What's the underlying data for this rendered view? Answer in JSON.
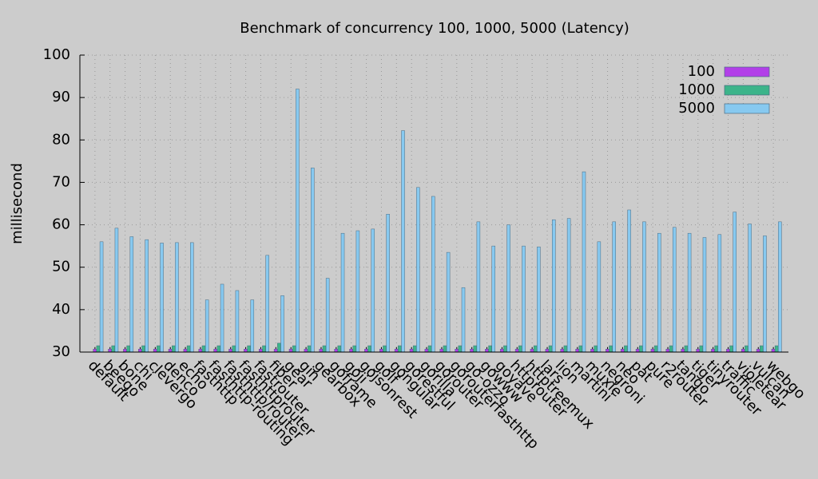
{
  "chart_data": {
    "type": "bar",
    "title": "Benchmark of concurrency 100, 1000, 5000 (Latency)",
    "y_label": "millisecond",
    "categories": [
      "default",
      "beego",
      "bone",
      "chi",
      "clevergo",
      "denco",
      "echo",
      "fasthttp",
      "fasthttp-routing",
      "fasthttp/router",
      "fasthttprouter",
      "fastrouter",
      "fiber",
      "gear",
      "gin",
      "gearbox",
      "goframe",
      "goji",
      "gojsonrest",
      "golf",
      "gongular",
      "gorestful",
      "gorilla",
      "gorouter",
      "gorouterfasthttp",
      "go-ozzo",
      "gowww",
      "goyave",
      "httprouter",
      "httptreemux",
      "lars",
      "lion",
      "martini",
      "muxie",
      "negroni",
      "neo",
      "pat",
      "pure",
      "r2router",
      "tango",
      "tiger",
      "tinyrouter",
      "traffic",
      "violetear",
      "vulcan",
      "webgo"
    ],
    "series": [
      {
        "name": "100",
        "color": "#b23fe8",
        "values": [
          30.7,
          30.7,
          30.7,
          30.7,
          30.7,
          30.7,
          30.7,
          30.7,
          30.7,
          30.7,
          30.7,
          30.7,
          30.7,
          30.7,
          30.7,
          30.7,
          30.7,
          30.7,
          30.7,
          30.7,
          30.7,
          30.7,
          30.7,
          30.7,
          30.7,
          30.7,
          30.7,
          30.7,
          30.7,
          30.7,
          30.7,
          30.7,
          30.7,
          30.7,
          30.7,
          30.7,
          30.7,
          30.7,
          30.7,
          30.7,
          30.7,
          30.7,
          30.7,
          30.7,
          30.7,
          30.7
        ]
      },
      {
        "name": "1000",
        "color": "#3cb48a",
        "values": [
          31.5,
          31.5,
          31.5,
          31.5,
          31.5,
          31.5,
          31.5,
          31.5,
          31.5,
          31.5,
          31.5,
          31.5,
          32.1,
          31.5,
          31.5,
          31.5,
          31.5,
          31.5,
          31.5,
          31.5,
          31.5,
          31.5,
          31.5,
          31.5,
          31.5,
          31.5,
          31.5,
          31.5,
          31.5,
          31.5,
          31.5,
          31.5,
          31.5,
          31.5,
          31.5,
          31.5,
          31.5,
          31.5,
          31.5,
          31.5,
          31.5,
          31.5,
          31.5,
          31.5,
          31.5,
          31.5
        ]
      },
      {
        "name": "5000",
        "color": "#87c9f0",
        "values": [
          56,
          59.2,
          57.2,
          56.5,
          55.7,
          55.8,
          55.8,
          42.3,
          46,
          44.5,
          42.3,
          52.8,
          43.3,
          92,
          73.4,
          47.4,
          58,
          58.6,
          59,
          62.5,
          82.2,
          68.8,
          66.7,
          53.5,
          45.2,
          60.7,
          55,
          60,
          55,
          54.8,
          61.2,
          61.5,
          72.5,
          56,
          60.7,
          63.5,
          60.7,
          58,
          59.4,
          58,
          57,
          57.7,
          63,
          60.2,
          57.4,
          60.7
        ]
      }
    ],
    "ylim": [
      30,
      100
    ],
    "yticks": [
      30,
      40,
      50,
      60,
      70,
      80,
      90,
      100
    ],
    "grid": true,
    "legend": "top-right"
  }
}
